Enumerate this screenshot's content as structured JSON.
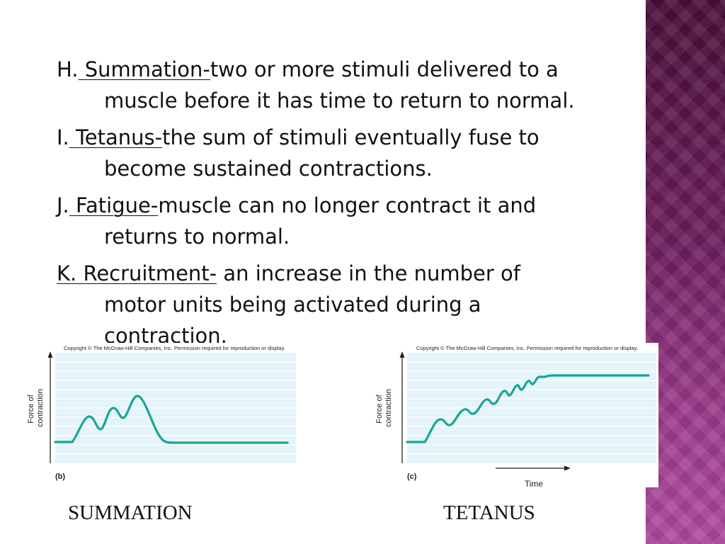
{
  "items": [
    {
      "marker": "H.",
      "term": " Summation-",
      "rest1": "two or more stimuli delivered to a",
      "rest2": "muscle before it has time to return to normal."
    },
    {
      "marker": "I.",
      "term": " Tetanus-",
      "rest1": "the sum of stimuli eventually fuse to",
      "rest2": "become sustained contractions."
    },
    {
      "marker": "J.",
      "term": " Fatigue-",
      "rest1": "muscle can no longer contract it and",
      "rest2": "returns to normal."
    },
    {
      "marker": "K.",
      "term": " Recruitment-",
      "rest1": " an increase in the number of",
      "rest2": "motor units being activated during a",
      "rest3": "contraction."
    }
  ],
  "figures": {
    "left": {
      "copyright": "Copyright © The McGraw-Hill Companies, Inc. Permission required for reproduction or display.",
      "ylabel": "Force of contraction",
      "panel_label": "(b)",
      "caption": "SUMMATION"
    },
    "right": {
      "copyright": "Copyright © The McGraw-Hill Companies, Inc. Permission required for reproduction or display.",
      "ylabel": "Force of contraction",
      "panel_label": "(c)",
      "xlabel": "Time",
      "caption": "TETANUS"
    }
  },
  "colors": {
    "trace": "#1aa598",
    "plot_bg": "#e4f4f8",
    "band_top": "#4a0f38",
    "band_bottom": "#b04aa0"
  }
}
